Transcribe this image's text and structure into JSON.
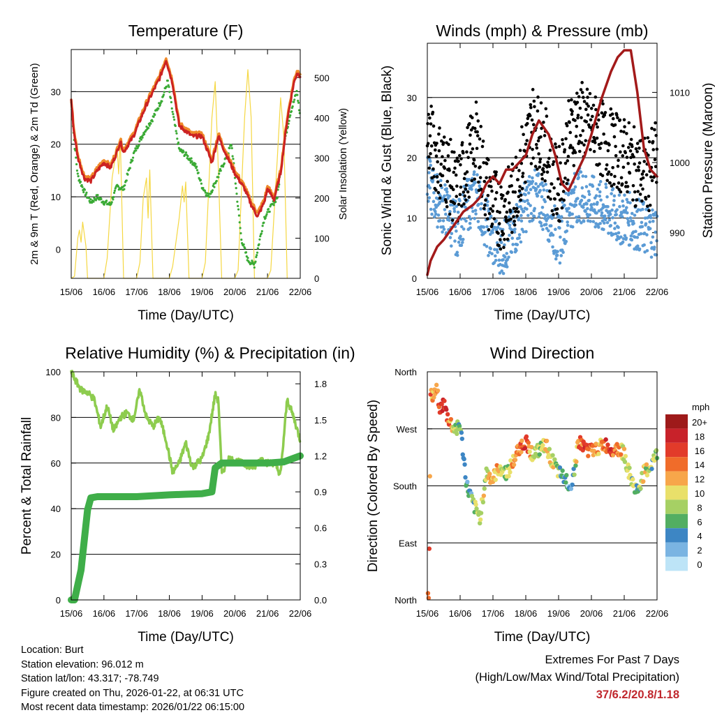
{
  "colors": {
    "temp2m": "#ef8a2b",
    "temp9m": "#cc2222",
    "dew": "#3aaa35",
    "solar": "#f5d742",
    "sonic": "#5b9bd5",
    "gust": "#000000",
    "pressure": "#a31a1a",
    "rh": "#8dcc4e",
    "precip": "#3fae49",
    "accent": "#c0272d"
  },
  "footer": {
    "location": "Location: Burt",
    "elevation": "Station elevation: 96.012 m",
    "latlon": "Station lat/lon: 43.317; -78.749",
    "created": "Figure created on Thu, 2026-01-22, at 06:31 UTC",
    "recent": "Most recent data timestamp: 2026/01/22 06:15:00"
  },
  "extremes": {
    "heading": "Extremes For Past 7 Days",
    "subheading": "(High/Low/Max Wind/Total Precipitation)",
    "values": "37/6.2/20.8/1.18"
  },
  "chart_data": [
    {
      "type": "line",
      "title": "Temperature (F)",
      "xlabel": "Time (Day/UTC)",
      "ylabel": "2m & 9m T (Red, Orange) & 2m Td (Green)",
      "ylabel_right": "Solar Insolation (Yellow)",
      "x_ticks": [
        "15/06",
        "16/06",
        "17/06",
        "18/06",
        "19/06",
        "20/06",
        "21/06",
        "22/06"
      ],
      "xlim": [
        0,
        7
      ],
      "ylim": [
        -5.5,
        38
      ],
      "y_ticks": [
        0,
        10,
        20,
        30
      ],
      "ylim_right": [
        0,
        570
      ],
      "y_ticks_right": [
        0,
        100,
        200,
        300,
        400,
        500
      ],
      "grid": true,
      "series": [
        {
          "name": "2m T",
          "axis": "left",
          "x": [
            0,
            0.08,
            0.2,
            0.4,
            0.6,
            0.8,
            1.0,
            1.2,
            1.4,
            1.5,
            1.6,
            1.9,
            2.3,
            2.7,
            2.9,
            3.1,
            3.3,
            3.5,
            3.7,
            4.0,
            4.3,
            4.5,
            4.7,
            5.0,
            5.3,
            5.5,
            5.7,
            5.9,
            6.0,
            6.2,
            6.4,
            6.6,
            6.8,
            6.9,
            7.0
          ],
          "values": [
            28.5,
            23,
            18,
            14,
            13.5,
            15.5,
            17,
            16,
            19,
            21,
            19,
            22,
            28,
            33,
            36.5,
            32,
            24,
            23,
            22,
            22,
            17,
            22,
            19,
            15,
            12,
            9,
            7,
            9.5,
            12,
            10,
            15,
            25,
            32,
            34,
            33.5
          ]
        },
        {
          "name": "9m T",
          "axis": "left",
          "x": [
            0,
            0.08,
            0.2,
            0.4,
            0.6,
            0.8,
            1.0,
            1.2,
            1.4,
            1.5,
            1.6,
            1.9,
            2.3,
            2.7,
            2.9,
            3.1,
            3.3,
            3.5,
            3.7,
            4.0,
            4.3,
            4.5,
            4.7,
            5.0,
            5.3,
            5.5,
            5.7,
            5.9,
            6.0,
            6.2,
            6.4,
            6.6,
            6.8,
            6.9,
            7.0
          ],
          "values": [
            28.5,
            22.5,
            17.5,
            13.5,
            13,
            15,
            16.5,
            15.5,
            18.5,
            20.5,
            18.5,
            21.5,
            27.5,
            32.5,
            36,
            31.5,
            23.5,
            22.5,
            21.5,
            21.5,
            16.5,
            21.5,
            18.5,
            14.5,
            11.5,
            8.5,
            6.2,
            9,
            11.5,
            9.5,
            14.5,
            24.5,
            31.5,
            33.5,
            33
          ]
        },
        {
          "name": "2m Td",
          "axis": "left",
          "x": [
            0,
            0.1,
            0.2,
            0.4,
            0.6,
            0.8,
            1.0,
            1.2,
            1.4,
            1.6,
            1.9,
            2.2,
            2.5,
            2.8,
            2.95,
            3.1,
            3.3,
            3.5,
            3.8,
            4.0,
            4.2,
            4.5,
            4.7,
            4.9,
            5.0,
            5.2,
            5.4,
            5.6,
            5.9,
            6.1,
            6.3,
            6.5,
            6.7,
            6.9,
            7.0
          ],
          "values": [
            28,
            20,
            14,
            11,
            9,
            10,
            9,
            8.5,
            12,
            11.5,
            18,
            22,
            25,
            29,
            32,
            26,
            19,
            18,
            16,
            12,
            10,
            14,
            17,
            20,
            14,
            2,
            -2,
            -3,
            6,
            8,
            10,
            20,
            26,
            30,
            25
          ]
        },
        {
          "name": "Solar Insolation",
          "axis": "right",
          "x": [
            0,
            0.1,
            0.2,
            0.25,
            0.3,
            0.35,
            0.45,
            0.5,
            1.0,
            1.1,
            1.25,
            1.4,
            1.45,
            1.5,
            1.6,
            2.0,
            2.1,
            2.2,
            2.3,
            2.35,
            2.4,
            2.5,
            3.0,
            3.1,
            3.3,
            3.4,
            3.45,
            3.5,
            3.6,
            4.0,
            4.1,
            4.3,
            4.4,
            4.45,
            4.5,
            4.6,
            5.0,
            5.1,
            5.3,
            5.4,
            5.5,
            5.6,
            6.0,
            6.1,
            6.3,
            6.4,
            6.5,
            6.6
          ],
          "values": [
            0,
            5,
            100,
            120,
            90,
            140,
            80,
            0,
            0,
            50,
            250,
            330,
            260,
            350,
            0,
            0,
            40,
            200,
            250,
            150,
            270,
            0,
            0,
            30,
            150,
            230,
            190,
            240,
            0,
            0,
            40,
            400,
            490,
            380,
            260,
            0,
            0,
            20,
            400,
            520,
            400,
            0,
            0,
            20,
            300,
            450,
            350,
            0
          ]
        }
      ]
    },
    {
      "type": "scatter",
      "title": "Winds (mph) & Pressure (mb)",
      "xlabel": "Time (Day/UTC)",
      "ylabel": "Sonic Wind & Gust (Blue, Black)",
      "ylabel_right": "Station Pressure (Maroon)",
      "x_ticks": [
        "15/06",
        "16/06",
        "17/06",
        "18/06",
        "19/06",
        "20/06",
        "21/06",
        "22/06"
      ],
      "xlim": [
        0,
        7
      ],
      "ylim": [
        0,
        39
      ],
      "y_ticks": [
        0,
        10,
        20,
        30
      ],
      "ylim_right": [
        983.5,
        1017
      ],
      "y_ticks_right": [
        990,
        1000,
        1010
      ],
      "grid": true,
      "series": [
        {
          "name": "Gust",
          "axis": "left",
          "x": [
            0,
            0.3,
            0.6,
            0.9,
            1.2,
            1.5,
            1.8,
            2.0,
            2.3,
            2.6,
            2.8,
            3.0,
            3.2,
            3.4,
            3.6,
            3.8,
            4.0,
            4.3,
            4.6,
            4.9,
            5.2,
            5.5,
            5.8,
            6.1,
            6.4,
            6.7,
            7.0
          ],
          "values": [
            24,
            20,
            18,
            14,
            19,
            23,
            15,
            12,
            11,
            13,
            18,
            21,
            26,
            24,
            22,
            17,
            15,
            23,
            27,
            25,
            24,
            22,
            21,
            20,
            18,
            17,
            20
          ]
        },
        {
          "name": "Sonic Wind",
          "axis": "left",
          "x": [
            0,
            0.3,
            0.6,
            0.9,
            1.2,
            1.5,
            1.8,
            2.0,
            2.3,
            2.6,
            2.8,
            3.0,
            3.2,
            3.4,
            3.6,
            3.8,
            4.0,
            4.3,
            4.6,
            4.9,
            5.2,
            5.5,
            5.8,
            6.1,
            6.4,
            6.7,
            7.0
          ],
          "values": [
            16,
            13,
            11,
            8,
            12,
            14,
            9,
            6,
            5,
            7,
            10,
            12,
            14,
            13,
            12,
            9,
            6,
            12,
            14,
            13,
            12,
            11,
            10,
            10,
            9,
            8,
            8
          ]
        },
        {
          "name": "Pressure",
          "axis": "right",
          "x": [
            0,
            0.1,
            0.3,
            0.5,
            0.8,
            1.1,
            1.4,
            1.6,
            1.8,
            2.0,
            2.2,
            2.4,
            2.6,
            2.8,
            3.0,
            3.2,
            3.4,
            3.7,
            3.9,
            4.1,
            4.3,
            4.5,
            4.8,
            5.0,
            5.3,
            5.6,
            5.8,
            6.0,
            6.2,
            6.4,
            6.6,
            6.8,
            7.0
          ],
          "values": [
            984,
            986,
            988,
            989,
            991,
            993,
            994,
            995,
            997,
            998,
            997,
            999,
            999,
            1000,
            1001,
            1004,
            1006,
            1004,
            1001,
            997,
            996,
            998,
            1001,
            1004,
            1009,
            1013,
            1015,
            1016,
            1016,
            1010,
            1002,
            999,
            998
          ]
        }
      ]
    },
    {
      "type": "line",
      "title": "Relative Humidity (%) & Precipitation (in)",
      "xlabel": "Time (Day/UTC)",
      "ylabel": "Percent & Total Rainfall",
      "x_ticks": [
        "15/06",
        "16/06",
        "17/06",
        "18/06",
        "19/06",
        "20/06",
        "21/06",
        "22/06"
      ],
      "xlim": [
        0,
        7
      ],
      "ylim": [
        0,
        100
      ],
      "y_ticks": [
        0,
        20,
        40,
        60,
        80,
        100
      ],
      "ylim_right": [
        0,
        1.9
      ],
      "y_ticks_right": [
        "0.0",
        "0.3",
        "0.6",
        "0.9",
        "1.2",
        "1.5",
        "1.8"
      ],
      "grid": true,
      "series": [
        {
          "name": "Relative Humidity",
          "axis": "left",
          "x": [
            0,
            0.1,
            0.3,
            0.5,
            0.7,
            0.9,
            1.1,
            1.3,
            1.5,
            1.7,
            1.9,
            2.1,
            2.3,
            2.5,
            2.7,
            2.9,
            3.1,
            3.3,
            3.5,
            3.7,
            4.0,
            4.2,
            4.4,
            4.5,
            4.6,
            4.8,
            5.0,
            5.2,
            5.4,
            5.6,
            5.8,
            6.0,
            6.2,
            6.4,
            6.6,
            6.8,
            7.0
          ],
          "values": [
            100,
            97,
            92,
            91,
            88,
            76,
            85,
            74,
            80,
            82,
            79,
            92,
            80,
            76,
            80,
            70,
            56,
            60,
            69,
            58,
            62,
            72,
            90,
            87,
            55,
            62,
            61,
            60,
            59,
            58,
            62,
            60,
            60,
            55,
            88,
            80,
            70
          ]
        },
        {
          "name": "Total Precipitation",
          "axis": "right",
          "x": [
            0,
            0.1,
            0.3,
            0.5,
            0.6,
            0.8,
            1.5,
            2.0,
            3.0,
            3.5,
            4.0,
            4.3,
            4.4,
            4.6,
            5.0,
            6.0,
            6.5,
            7.0
          ],
          "values": [
            0,
            0,
            0.25,
            0.75,
            0.85,
            0.86,
            0.86,
            0.86,
            0.875,
            0.88,
            0.885,
            0.9,
            1.1,
            1.14,
            1.14,
            1.14,
            1.15,
            1.2
          ]
        }
      ]
    },
    {
      "type": "scatter",
      "title": "Wind Direction",
      "xlabel": "Time (Day/UTC)",
      "ylabel": "Direction (Colored By Speed)",
      "x_ticks": [
        "15/06",
        "16/06",
        "17/06",
        "18/06",
        "19/06",
        "20/06",
        "21/06",
        "22/06"
      ],
      "xlim": [
        0,
        7
      ],
      "ylim": [
        0,
        360
      ],
      "y_ticks": [
        "North",
        "East",
        "South",
        "West",
        "North"
      ],
      "colorbar_title": "mph",
      "colorbar_labels": [
        "20+",
        "18",
        "16",
        "14",
        "12",
        "10",
        "8",
        "6",
        "4",
        "2",
        "0"
      ],
      "colorbar_colors": [
        "#9e1a1a",
        "#c8222a",
        "#e23b2a",
        "#f06c2a",
        "#f7a64a",
        "#e9e06a",
        "#a6d064",
        "#52ae62",
        "#3d86c4",
        "#7ab4e2",
        "#bde4f7"
      ],
      "series": [
        {
          "name": "Direction",
          "x": [
            0,
            0.05,
            0.1,
            0.2,
            0.3,
            0.4,
            0.5,
            0.6,
            0.8,
            1.0,
            1.2,
            1.4,
            1.6,
            1.8,
            2.0,
            2.2,
            2.4,
            2.6,
            2.8,
            3.0,
            3.2,
            3.4,
            3.6,
            3.8,
            4.0,
            4.2,
            4.4,
            4.6,
            4.8,
            5.0,
            5.2,
            5.4,
            5.6,
            5.8,
            6.0,
            6.2,
            6.4,
            6.6,
            6.8,
            7.0
          ],
          "values": [
            15,
            10,
            320,
            325,
            330,
            300,
            310,
            290,
            270,
            275,
            180,
            150,
            130,
            200,
            190,
            210,
            200,
            215,
            240,
            250,
            230,
            235,
            245,
            220,
            200,
            190,
            180,
            250,
            240,
            235,
            240,
            245,
            238,
            240,
            230,
            190,
            170,
            200,
            210,
            230
          ],
          "speeds": [
            18,
            16,
            14,
            12,
            14,
            16,
            18,
            16,
            8,
            6,
            4,
            6,
            8,
            10,
            12,
            10,
            8,
            12,
            14,
            16,
            10,
            8,
            12,
            10,
            6,
            4,
            2,
            14,
            16,
            14,
            12,
            14,
            16,
            12,
            10,
            8,
            6,
            10,
            8,
            6
          ]
        }
      ]
    }
  ]
}
